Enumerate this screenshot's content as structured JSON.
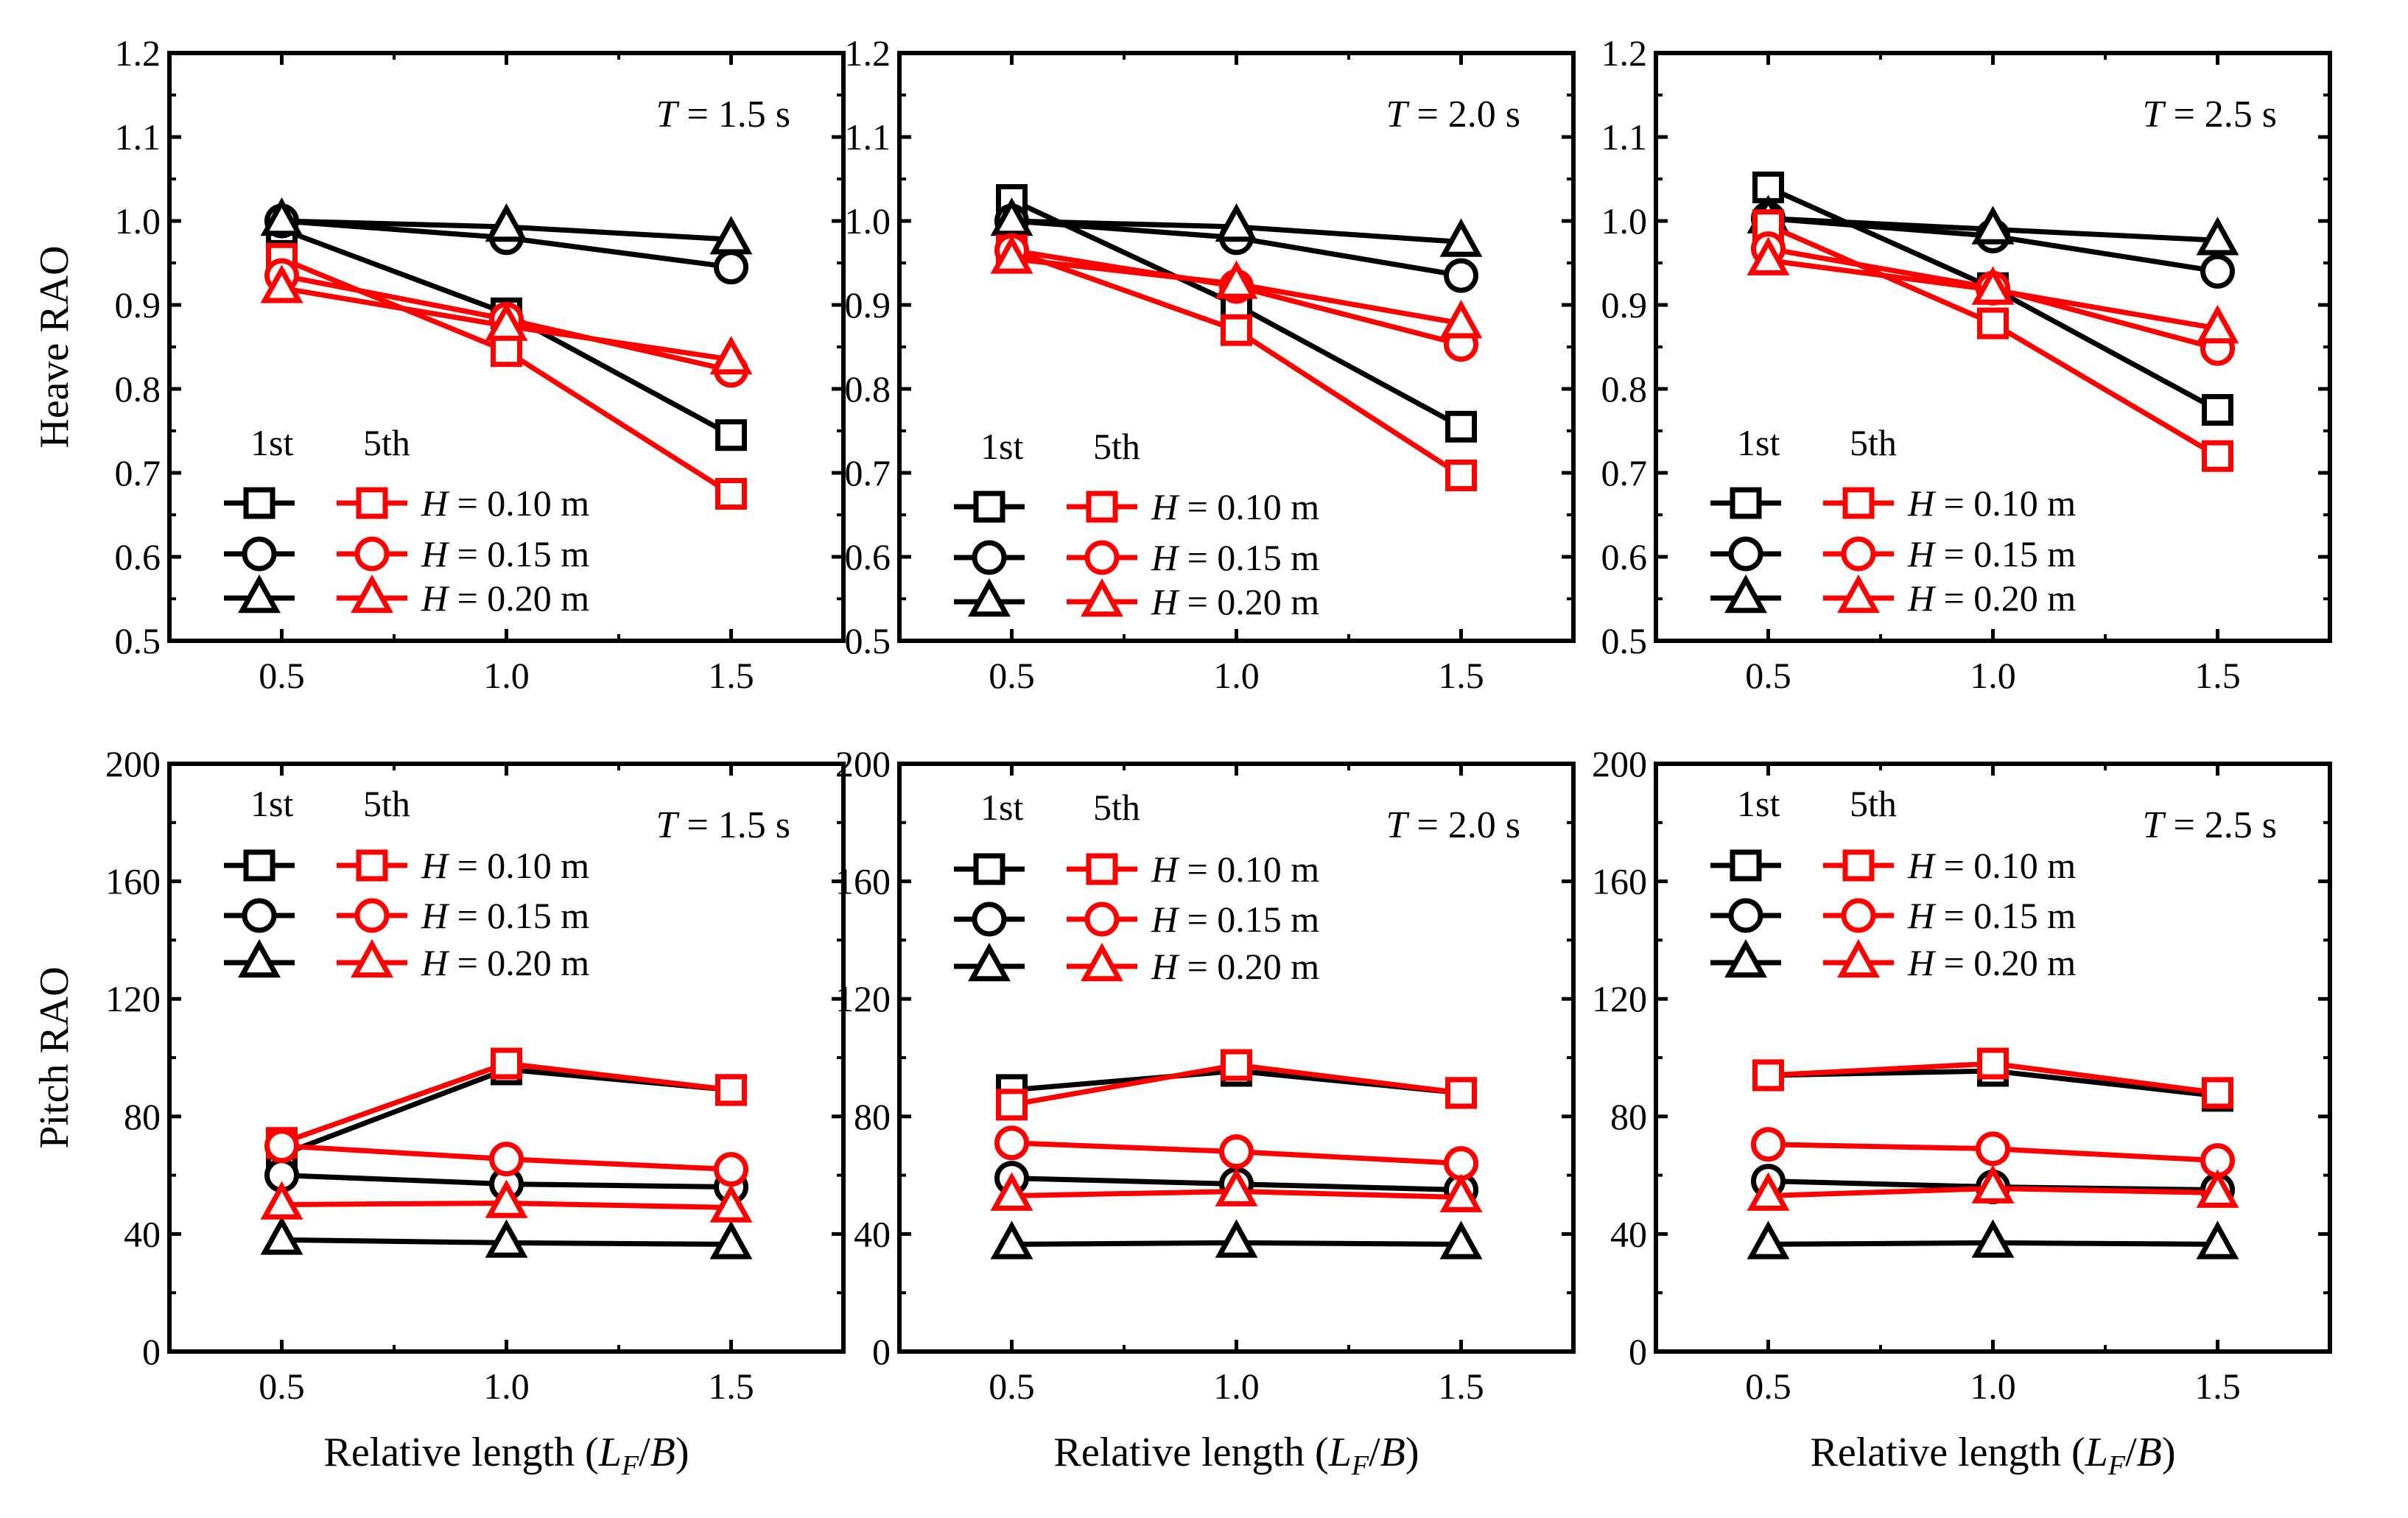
{
  "figure": {
    "rows": [
      {
        "ylabel": "Heave RAO"
      },
      {
        "ylabel": "Pitch RAO"
      }
    ],
    "xlabel": {
      "main": "Relative length (",
      "L": "L",
      "F": "F",
      "slash": "/",
      "B": "B",
      "close": ")"
    },
    "legend": {
      "col1": "1st",
      "col2": "5th",
      "entries": [
        "0.10 m",
        "0.15 m",
        "0.20 m"
      ],
      "H": "H",
      "eq": " = "
    }
  },
  "colors": {
    "first": "#000000",
    "fifth": "#ff0000"
  },
  "chart_data": [
    {
      "type": "line",
      "row": 0,
      "col": 0,
      "annotation": {
        "T": "T",
        "value": " = 1.5 s"
      },
      "ylabel": "Heave RAO",
      "xlabel": "Relative length (LF/B)",
      "x": [
        0.5,
        1.0,
        1.5
      ],
      "xlim": [
        0.25,
        1.75
      ],
      "ylim": [
        0.5,
        1.2
      ],
      "xticks": [
        "0.5",
        "1.0",
        "1.5"
      ],
      "yticks": [
        "0.5",
        "0.6",
        "0.7",
        "0.8",
        "0.9",
        "1.0",
        "1.1",
        "1.2"
      ],
      "series": [
        {
          "group": "1st",
          "H": "0.10 m",
          "marker": "square",
          "values": [
            0.99,
            0.89,
            0.745
          ]
        },
        {
          "group": "1st",
          "H": "0.15 m",
          "marker": "circle",
          "values": [
            1.0,
            0.98,
            0.945
          ]
        },
        {
          "group": "1st",
          "H": "0.20 m",
          "marker": "triangle",
          "values": [
            1.0,
            0.993,
            0.978
          ]
        },
        {
          "group": "5th",
          "H": "0.10 m",
          "marker": "square",
          "values": [
            0.955,
            0.845,
            0.675
          ]
        },
        {
          "group": "5th",
          "H": "0.15 m",
          "marker": "circle",
          "values": [
            0.935,
            0.883,
            0.822
          ]
        },
        {
          "group": "5th",
          "H": "0.20 m",
          "marker": "triangle",
          "values": [
            0.92,
            0.875,
            0.835
          ]
        }
      ]
    },
    {
      "type": "line",
      "row": 0,
      "col": 1,
      "annotation": {
        "T": "T",
        "value": " = 2.0 s"
      },
      "ylabel": "",
      "xlabel": "Relative length (LF/B)",
      "x": [
        0.5,
        1.0,
        1.5
      ],
      "xlim": [
        0.25,
        1.75
      ],
      "ylim": [
        0.5,
        1.2
      ],
      "xticks": [
        "0.5",
        "1.0",
        "1.5"
      ],
      "yticks": [
        "0.5",
        "0.6",
        "0.7",
        "0.8",
        "0.9",
        "1.0",
        "1.1",
        "1.2"
      ],
      "series": [
        {
          "group": "1st",
          "H": "0.10 m",
          "marker": "square",
          "values": [
            1.025,
            0.9,
            0.755
          ]
        },
        {
          "group": "1st",
          "H": "0.15 m",
          "marker": "circle",
          "values": [
            1.0,
            0.98,
            0.935
          ]
        },
        {
          "group": "1st",
          "H": "0.20 m",
          "marker": "triangle",
          "values": [
            1.0,
            0.993,
            0.975
          ]
        },
        {
          "group": "5th",
          "H": "0.10 m",
          "marker": "square",
          "values": [
            0.965,
            0.87,
            0.697
          ]
        },
        {
          "group": "5th",
          "H": "0.15 m",
          "marker": "circle",
          "values": [
            0.965,
            0.922,
            0.853
          ]
        },
        {
          "group": "5th",
          "H": "0.20 m",
          "marker": "triangle",
          "values": [
            0.955,
            0.925,
            0.878
          ]
        }
      ]
    },
    {
      "type": "line",
      "row": 0,
      "col": 2,
      "annotation": {
        "T": "T",
        "value": " = 2.5 s"
      },
      "ylabel": "",
      "xlabel": "Relative length (LF/B)",
      "x": [
        0.5,
        1.0,
        1.5
      ],
      "xlim": [
        0.25,
        1.75
      ],
      "ylim": [
        0.5,
        1.2
      ],
      "xticks": [
        "0.5",
        "1.0",
        "1.5"
      ],
      "yticks": [
        "0.5",
        "0.6",
        "0.7",
        "0.8",
        "0.9",
        "1.0",
        "1.1",
        "1.2"
      ],
      "series": [
        {
          "group": "1st",
          "H": "0.10 m",
          "marker": "square",
          "values": [
            1.04,
            0.92,
            0.775
          ]
        },
        {
          "group": "1st",
          "H": "0.15 m",
          "marker": "circle",
          "values": [
            1.003,
            0.982,
            0.94
          ]
        },
        {
          "group": "1st",
          "H": "0.20 m",
          "marker": "triangle",
          "values": [
            1.003,
            0.99,
            0.977
          ]
        },
        {
          "group": "5th",
          "H": "0.10 m",
          "marker": "square",
          "values": [
            0.995,
            0.878,
            0.72
          ]
        },
        {
          "group": "5th",
          "H": "0.15 m",
          "marker": "circle",
          "values": [
            0.967,
            0.92,
            0.848
          ]
        },
        {
          "group": "5th",
          "H": "0.20 m",
          "marker": "triangle",
          "values": [
            0.953,
            0.918,
            0.872
          ]
        }
      ]
    },
    {
      "type": "line",
      "row": 1,
      "col": 0,
      "annotation": {
        "T": "T",
        "value": " = 1.5 s"
      },
      "ylabel": "Pitch RAO",
      "xlabel": "Relative length (LF/B)",
      "x": [
        0.5,
        1.0,
        1.5
      ],
      "xlim": [
        0.25,
        1.75
      ],
      "ylim": [
        0,
        200
      ],
      "xticks": [
        "0.5",
        "1.0",
        "1.5"
      ],
      "yticks": [
        "0",
        "40",
        "80",
        "120",
        "160",
        "200"
      ],
      "series": [
        {
          "group": "1st",
          "H": "0.10 m",
          "marker": "square",
          "values": [
            67,
            96,
            89
          ]
        },
        {
          "group": "1st",
          "H": "0.15 m",
          "marker": "circle",
          "values": [
            60,
            57,
            56
          ]
        },
        {
          "group": "1st",
          "H": "0.20 m",
          "marker": "triangle",
          "values": [
            38,
            37,
            36.5
          ]
        },
        {
          "group": "5th",
          "H": "0.10 m",
          "marker": "square",
          "values": [
            71,
            98,
            89
          ]
        },
        {
          "group": "5th",
          "H": "0.15 m",
          "marker": "circle",
          "values": [
            70,
            65.5,
            62
          ]
        },
        {
          "group": "5th",
          "H": "0.20 m",
          "marker": "triangle",
          "values": [
            50,
            50.5,
            49
          ]
        }
      ]
    },
    {
      "type": "line",
      "row": 1,
      "col": 1,
      "annotation": {
        "T": "T",
        "value": " = 2.0 s"
      },
      "ylabel": "",
      "xlabel": "Relative length (LF/B)",
      "x": [
        0.5,
        1.0,
        1.5
      ],
      "xlim": [
        0.25,
        1.75
      ],
      "ylim": [
        0,
        200
      ],
      "xticks": [
        "0.5",
        "1.0",
        "1.5"
      ],
      "yticks": [
        "0",
        "40",
        "80",
        "120",
        "160",
        "200"
      ],
      "series": [
        {
          "group": "1st",
          "H": "0.10 m",
          "marker": "square",
          "values": [
            89,
            95.5,
            88
          ]
        },
        {
          "group": "1st",
          "H": "0.15 m",
          "marker": "circle",
          "values": [
            59,
            57,
            55
          ]
        },
        {
          "group": "1st",
          "H": "0.20 m",
          "marker": "triangle",
          "values": [
            36.5,
            37,
            36.5
          ]
        },
        {
          "group": "5th",
          "H": "0.10 m",
          "marker": "square",
          "values": [
            84,
            97.5,
            88
          ]
        },
        {
          "group": "5th",
          "H": "0.15 m",
          "marker": "circle",
          "values": [
            71,
            68,
            64
          ]
        },
        {
          "group": "5th",
          "H": "0.20 m",
          "marker": "triangle",
          "values": [
            53,
            54.5,
            52.5
          ]
        }
      ]
    },
    {
      "type": "line",
      "row": 1,
      "col": 2,
      "annotation": {
        "T": "T",
        "value": " = 2.5 s"
      },
      "ylabel": "",
      "xlabel": "Relative length (LF/B)",
      "x": [
        0.5,
        1.0,
        1.5
      ],
      "xlim": [
        0.25,
        1.75
      ],
      "ylim": [
        0,
        200
      ],
      "xticks": [
        "0.5",
        "1.0",
        "1.5"
      ],
      "yticks": [
        "0",
        "40",
        "80",
        "120",
        "160",
        "200"
      ],
      "series": [
        {
          "group": "1st",
          "H": "0.10 m",
          "marker": "square",
          "values": [
            94,
            95.5,
            87
          ]
        },
        {
          "group": "1st",
          "H": "0.15 m",
          "marker": "circle",
          "values": [
            58,
            56,
            55
          ]
        },
        {
          "group": "1st",
          "H": "0.20 m",
          "marker": "triangle",
          "values": [
            36.5,
            37,
            36.5
          ]
        },
        {
          "group": "5th",
          "H": "0.10 m",
          "marker": "square",
          "values": [
            94,
            98,
            88
          ]
        },
        {
          "group": "5th",
          "H": "0.15 m",
          "marker": "circle",
          "values": [
            70.5,
            69,
            65
          ]
        },
        {
          "group": "5th",
          "H": "0.20 m",
          "marker": "triangle",
          "values": [
            53,
            55.5,
            54
          ]
        }
      ]
    }
  ]
}
